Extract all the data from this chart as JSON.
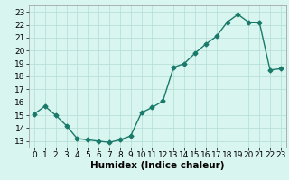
{
  "x": [
    0,
    1,
    2,
    3,
    4,
    5,
    6,
    7,
    8,
    9,
    10,
    11,
    12,
    13,
    14,
    15,
    16,
    17,
    18,
    19,
    20,
    21,
    22,
    23
  ],
  "y": [
    15.1,
    15.7,
    15.0,
    14.2,
    13.2,
    13.1,
    13.0,
    12.9,
    13.1,
    13.4,
    15.2,
    15.6,
    16.1,
    18.7,
    19.0,
    19.8,
    20.5,
    21.1,
    22.2,
    22.8,
    22.2,
    22.2,
    18.5,
    18.6
  ],
  "line_color": "#1a7a6a",
  "marker": "D",
  "markersize": 2.5,
  "linewidth": 1.0,
  "bg_color": "#d9f5f0",
  "grid_color": "#b8e0da",
  "xlabel": "Humidex (Indice chaleur)",
  "xlim": [
    -0.5,
    23.5
  ],
  "ylim": [
    12.5,
    23.5
  ],
  "yticks": [
    13,
    14,
    15,
    16,
    17,
    18,
    19,
    20,
    21,
    22,
    23
  ],
  "xticks": [
    0,
    1,
    2,
    3,
    4,
    5,
    6,
    7,
    8,
    9,
    10,
    11,
    12,
    13,
    14,
    15,
    16,
    17,
    18,
    19,
    20,
    21,
    22,
    23
  ],
  "xlabel_fontsize": 7.5,
  "tick_fontsize": 6.5
}
